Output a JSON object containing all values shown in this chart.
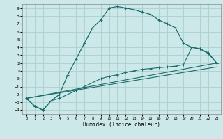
{
  "title": "",
  "xlabel": "Humidex (Indice chaleur)",
  "bg_color": "#cce8e8",
  "grid_color": "#aacfcf",
  "line_color": "#1a6b6b",
  "xlim": [
    -0.5,
    23.5
  ],
  "ylim": [
    -4.5,
    9.5
  ],
  "xticks": [
    0,
    1,
    2,
    3,
    4,
    5,
    6,
    7,
    8,
    9,
    10,
    11,
    12,
    13,
    14,
    15,
    16,
    17,
    18,
    19,
    20,
    21,
    22,
    23
  ],
  "yticks": [
    -4,
    -3,
    -2,
    -1,
    0,
    1,
    2,
    3,
    4,
    5,
    6,
    7,
    8,
    9
  ],
  "curve1_x": [
    0,
    1,
    2,
    3,
    4,
    5,
    6,
    7,
    8,
    9,
    10,
    11,
    12,
    13,
    14,
    15,
    16,
    17,
    18,
    19,
    20,
    21,
    22,
    23
  ],
  "curve1_y": [
    -2.5,
    -3.5,
    -4.0,
    -2.8,
    -2.0,
    0.5,
    2.5,
    4.5,
    6.5,
    7.5,
    9.0,
    9.2,
    9.0,
    8.8,
    8.5,
    8.2,
    7.5,
    7.0,
    6.5,
    4.5,
    4.0,
    3.8,
    3.2,
    2.0
  ],
  "curve2_x": [
    0,
    1,
    2,
    3,
    4,
    5,
    6,
    7,
    8,
    9,
    10,
    11,
    12,
    13,
    14,
    15,
    16,
    17,
    18,
    19,
    20,
    21,
    22,
    23
  ],
  "curve2_y": [
    -2.5,
    -3.5,
    -4.0,
    -2.8,
    -2.5,
    -2.0,
    -1.5,
    -1.0,
    -0.5,
    0.0,
    0.3,
    0.5,
    0.8,
    1.0,
    1.2,
    1.3,
    1.4,
    1.5,
    1.6,
    1.8,
    4.0,
    3.8,
    3.3,
    2.0
  ],
  "curve3_x": [
    0,
    23
  ],
  "curve3_y": [
    -2.5,
    2.0
  ],
  "curve4_x": [
    0,
    23
  ],
  "curve4_y": [
    -2.5,
    1.5
  ]
}
